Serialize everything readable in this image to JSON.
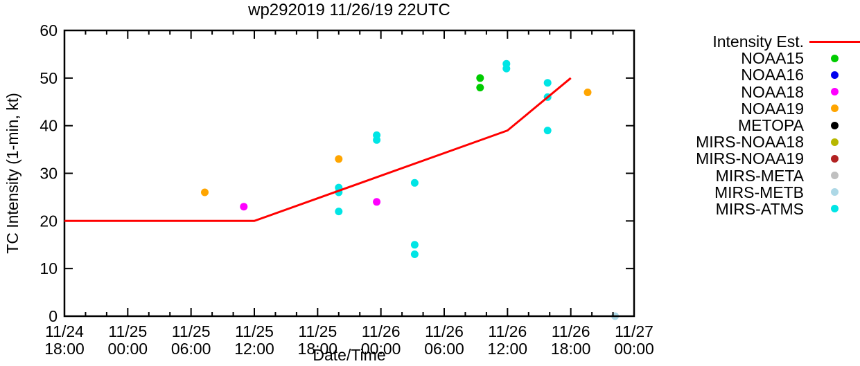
{
  "title": "wp292019 11/26/19 22UTC",
  "chart_data": {
    "type": "scatter",
    "title": "wp292019 11/26/19 22UTC",
    "xlabel": "Date/Time",
    "ylabel": "TC Intensity (1-min, kt)",
    "x_axis_note": "hours since 11/24 18:00",
    "xlim_hours": [
      0,
      54
    ],
    "ylim": [
      0,
      60
    ],
    "ytick_step": 10,
    "xtick_major_hours": 6,
    "xtick_minor_hours": 2,
    "grid": false,
    "legend_position": "right",
    "xtick_labels": [
      [
        "11/24",
        "18:00"
      ],
      [
        "11/25",
        "00:00"
      ],
      [
        "11/25",
        "06:00"
      ],
      [
        "11/25",
        "12:00"
      ],
      [
        "11/25",
        "18:00"
      ],
      [
        "11/26",
        "00:00"
      ],
      [
        "11/26",
        "06:00"
      ],
      [
        "11/26",
        "12:00"
      ],
      [
        "11/26",
        "18:00"
      ],
      [
        "11/27",
        "00:00"
      ]
    ],
    "line_series": {
      "name": "Intensity Est.",
      "color": "#ff0000",
      "points": [
        [
          0,
          20
        ],
        [
          18,
          20
        ],
        [
          42,
          39
        ],
        [
          48,
          50
        ]
      ]
    },
    "scatter_series": [
      {
        "name": "NOAA15",
        "color": "#00cc00",
        "points": [
          [
            39.4,
            50
          ],
          [
            39.4,
            48
          ]
        ]
      },
      {
        "name": "NOAA16",
        "color": "#0000ee",
        "points": []
      },
      {
        "name": "NOAA18",
        "color": "#ff00ff",
        "points": [
          [
            17,
            23
          ],
          [
            29.6,
            24
          ]
        ]
      },
      {
        "name": "NOAA19",
        "color": "#ffa500",
        "points": [
          [
            13.3,
            26
          ],
          [
            26,
            33
          ],
          [
            49.6,
            47
          ]
        ]
      },
      {
        "name": "METOPA",
        "color": "#000000",
        "points": []
      },
      {
        "name": "MIRS-NOAA18",
        "color": "#b8b800",
        "points": []
      },
      {
        "name": "MIRS-NOAA19",
        "color": "#b22222",
        "points": []
      },
      {
        "name": "MIRS-META",
        "color": "#c0c0c0",
        "points": []
      },
      {
        "name": "MIRS-METB",
        "color": "#add8e6",
        "points": [
          [
            52.2,
            0
          ]
        ]
      },
      {
        "name": "MIRS-ATMS",
        "color": "#00e5e5",
        "points": [
          [
            26,
            27
          ],
          [
            26,
            26
          ],
          [
            26,
            22
          ],
          [
            29.6,
            38
          ],
          [
            29.6,
            37
          ],
          [
            33.2,
            28
          ],
          [
            33.2,
            15
          ],
          [
            33.2,
            13
          ],
          [
            41.9,
            53
          ],
          [
            41.9,
            52
          ],
          [
            45.8,
            49
          ],
          [
            45.8,
            46
          ],
          [
            45.8,
            39
          ]
        ]
      }
    ]
  },
  "legend": {
    "entries": [
      {
        "label": "Intensity Est.",
        "color": "#ff0000",
        "marker": "line"
      },
      {
        "label": "NOAA15",
        "color": "#00cc00",
        "marker": "dot"
      },
      {
        "label": "NOAA16",
        "color": "#0000ee",
        "marker": "dot"
      },
      {
        "label": "NOAA18",
        "color": "#ff00ff",
        "marker": "dot"
      },
      {
        "label": "NOAA19",
        "color": "#ffa500",
        "marker": "dot"
      },
      {
        "label": "METOPA",
        "color": "#000000",
        "marker": "dot"
      },
      {
        "label": "MIRS-NOAA18",
        "color": "#b8b800",
        "marker": "dot"
      },
      {
        "label": "MIRS-NOAA19",
        "color": "#b22222",
        "marker": "dot"
      },
      {
        "label": "MIRS-META",
        "color": "#c0c0c0",
        "marker": "dot"
      },
      {
        "label": "MIRS-METB",
        "color": "#add8e6",
        "marker": "dot"
      },
      {
        "label": "MIRS-ATMS",
        "color": "#00e5e5",
        "marker": "dot"
      }
    ]
  }
}
